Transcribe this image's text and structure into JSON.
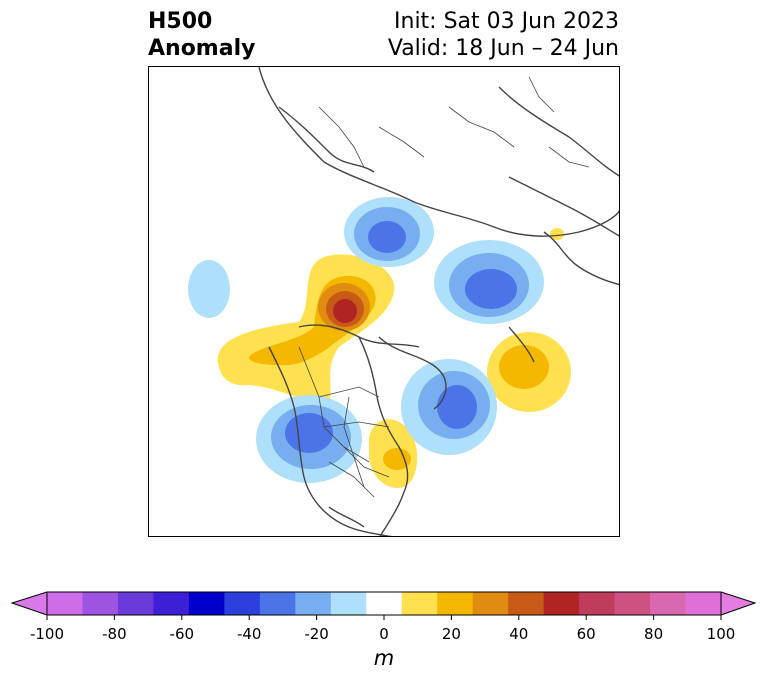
{
  "title": {
    "left_line1": "H500",
    "left_line2": "Anomaly",
    "right_line1": "Init: Sat 03 Jun 2023",
    "right_line2": "Valid: 18 Jun – 24 Jun"
  },
  "colorbar": {
    "unit": "m",
    "tick_labels": [
      "-100",
      "-80",
      "-60",
      "-40",
      "-20",
      "0",
      "20",
      "40",
      "60",
      "80",
      "100"
    ],
    "levels": [
      -100,
      -90,
      -80,
      -70,
      -60,
      -50,
      -40,
      -30,
      -20,
      -10,
      10,
      20,
      30,
      40,
      50,
      60,
      70,
      80,
      90,
      100
    ],
    "colors": [
      "#cf6de8",
      "#9d54e0",
      "#6a3bd8",
      "#3d1fd6",
      "#0000cc",
      "#2a3fdc",
      "#4d74e6",
      "#77aef0",
      "#aee0fb",
      "#ffffff",
      "#ffe150",
      "#f4b800",
      "#e08c10",
      "#c85a18",
      "#b02424",
      "#c03c5c",
      "#cc5282",
      "#d868b0",
      "#e070d8"
    ],
    "extend_low_color": "#d77ae8",
    "extend_high_color": "#e57de0"
  },
  "map": {
    "projection": "north-polar-stereographic",
    "anomaly_centers": [
      {
        "name": "positive-anomaly-northwest-canada",
        "sign": "positive",
        "peak_m": 60
      },
      {
        "name": "positive-anomaly-north-atlantic",
        "sign": "positive",
        "peak_m": 30
      },
      {
        "name": "positive-anomaly-great-lakes",
        "sign": "positive",
        "peak_m": 20
      },
      {
        "name": "positive-anomaly-siberia-coast",
        "sign": "positive",
        "peak_m": 10
      },
      {
        "name": "negative-anomaly-pacific-northwest",
        "sign": "negative",
        "peak_m": -40
      },
      {
        "name": "negative-anomaly-labrador-sea",
        "sign": "negative",
        "peak_m": -40
      },
      {
        "name": "negative-anomaly-east-siberia",
        "sign": "negative",
        "peak_m": -40
      },
      {
        "name": "negative-anomaly-barents-sea",
        "sign": "negative",
        "peak_m": -40
      },
      {
        "name": "negative-anomaly-north-pacific",
        "sign": "negative",
        "peak_m": -10
      }
    ]
  }
}
